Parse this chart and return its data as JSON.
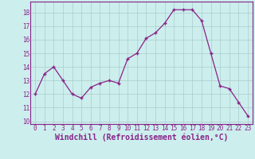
{
  "x": [
    0,
    1,
    2,
    3,
    4,
    5,
    6,
    7,
    8,
    9,
    10,
    11,
    12,
    13,
    14,
    15,
    16,
    17,
    18,
    19,
    20,
    21,
    22,
    23
  ],
  "y": [
    12.0,
    13.5,
    14.0,
    13.0,
    12.0,
    11.7,
    12.5,
    12.8,
    13.0,
    12.8,
    14.6,
    15.0,
    16.1,
    16.5,
    17.2,
    18.2,
    18.2,
    18.2,
    17.4,
    15.0,
    12.6,
    12.4,
    11.4,
    10.4
  ],
  "line_color": "#882288",
  "marker": "+",
  "bg_color": "#cceeed",
  "grid_color": "#aacccc",
  "xlabel": "Windchill (Refroidissement éolien,°C)",
  "ylim": [
    9.8,
    18.8
  ],
  "xlim": [
    -0.5,
    23.5
  ],
  "yticks": [
    10,
    11,
    12,
    13,
    14,
    15,
    16,
    17,
    18
  ],
  "xticks": [
    0,
    1,
    2,
    3,
    4,
    5,
    6,
    7,
    8,
    9,
    10,
    11,
    12,
    13,
    14,
    15,
    16,
    17,
    18,
    19,
    20,
    21,
    22,
    23
  ],
  "tick_fontsize": 5.5,
  "xlabel_fontsize": 7,
  "spine_color": "#882288",
  "tick_color": "#882288"
}
